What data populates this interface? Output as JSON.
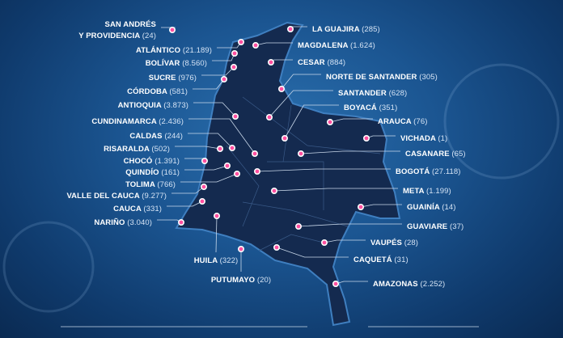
{
  "colors": {
    "background": "#1b5591",
    "map_fill": "#142a4f",
    "marker": "#ff4fa0",
    "text": "#ffffff"
  },
  "departments": [
    {
      "name": "SAN ANDRÉS",
      "name2": "Y PROVIDENCIA",
      "cases": "(24)"
    },
    {
      "name": "ATLÁNTICO",
      "cases": "(21.189)"
    },
    {
      "name": "BOLÍVAR",
      "cases": "(8.560)"
    },
    {
      "name": "SUCRE",
      "cases": "(976)"
    },
    {
      "name": "CÓRDOBA",
      "cases": "(581)"
    },
    {
      "name": "ANTIOQUIA",
      "cases": "(3.873)"
    },
    {
      "name": "CUNDINAMARCA",
      "cases": "(2.436)"
    },
    {
      "name": "CALDAS",
      "cases": "(244)"
    },
    {
      "name": "RISARALDA",
      "cases": "(502)"
    },
    {
      "name": "CHOCÓ",
      "cases": "(1.391)"
    },
    {
      "name": "QUINDÍO",
      "cases": "(161)"
    },
    {
      "name": "TOLIMA",
      "cases": "(766)"
    },
    {
      "name": "VALLE DEL CAUCA",
      "cases": "(9.277)"
    },
    {
      "name": "CAUCA",
      "cases": "(331)"
    },
    {
      "name": "NARIÑO",
      "cases": "(3.040)"
    },
    {
      "name": "HUILA",
      "cases": "(322)"
    },
    {
      "name": "PUTUMAYO",
      "cases": "(20)"
    },
    {
      "name": "LA GUAJIRA",
      "cases": "(285)"
    },
    {
      "name": "MAGDALENA",
      "cases": "(1.624)"
    },
    {
      "name": "CESAR",
      "cases": "(884)"
    },
    {
      "name": "NORTE DE SANTANDER",
      "cases": "(305)"
    },
    {
      "name": "SANTANDER",
      "cases": "(628)"
    },
    {
      "name": "BOYACÁ",
      "cases": "(351)"
    },
    {
      "name": "ARAUCA",
      "cases": "(76)"
    },
    {
      "name": "VICHADA",
      "cases": "(1)"
    },
    {
      "name": "CASANARE",
      "cases": "(65)"
    },
    {
      "name": "BOGOTÁ",
      "cases": "(27.118)"
    },
    {
      "name": "META",
      "cases": "(1.199)"
    },
    {
      "name": "GUAINÍA",
      "cases": "(14)"
    },
    {
      "name": "GUAVIARE",
      "cases": "(37)"
    },
    {
      "name": "VAUPÉS",
      "cases": "(28)"
    },
    {
      "name": "CAQUETÁ",
      "cases": "(31)"
    },
    {
      "name": "AMAZONAS",
      "cases": "(2.252)"
    }
  ]
}
